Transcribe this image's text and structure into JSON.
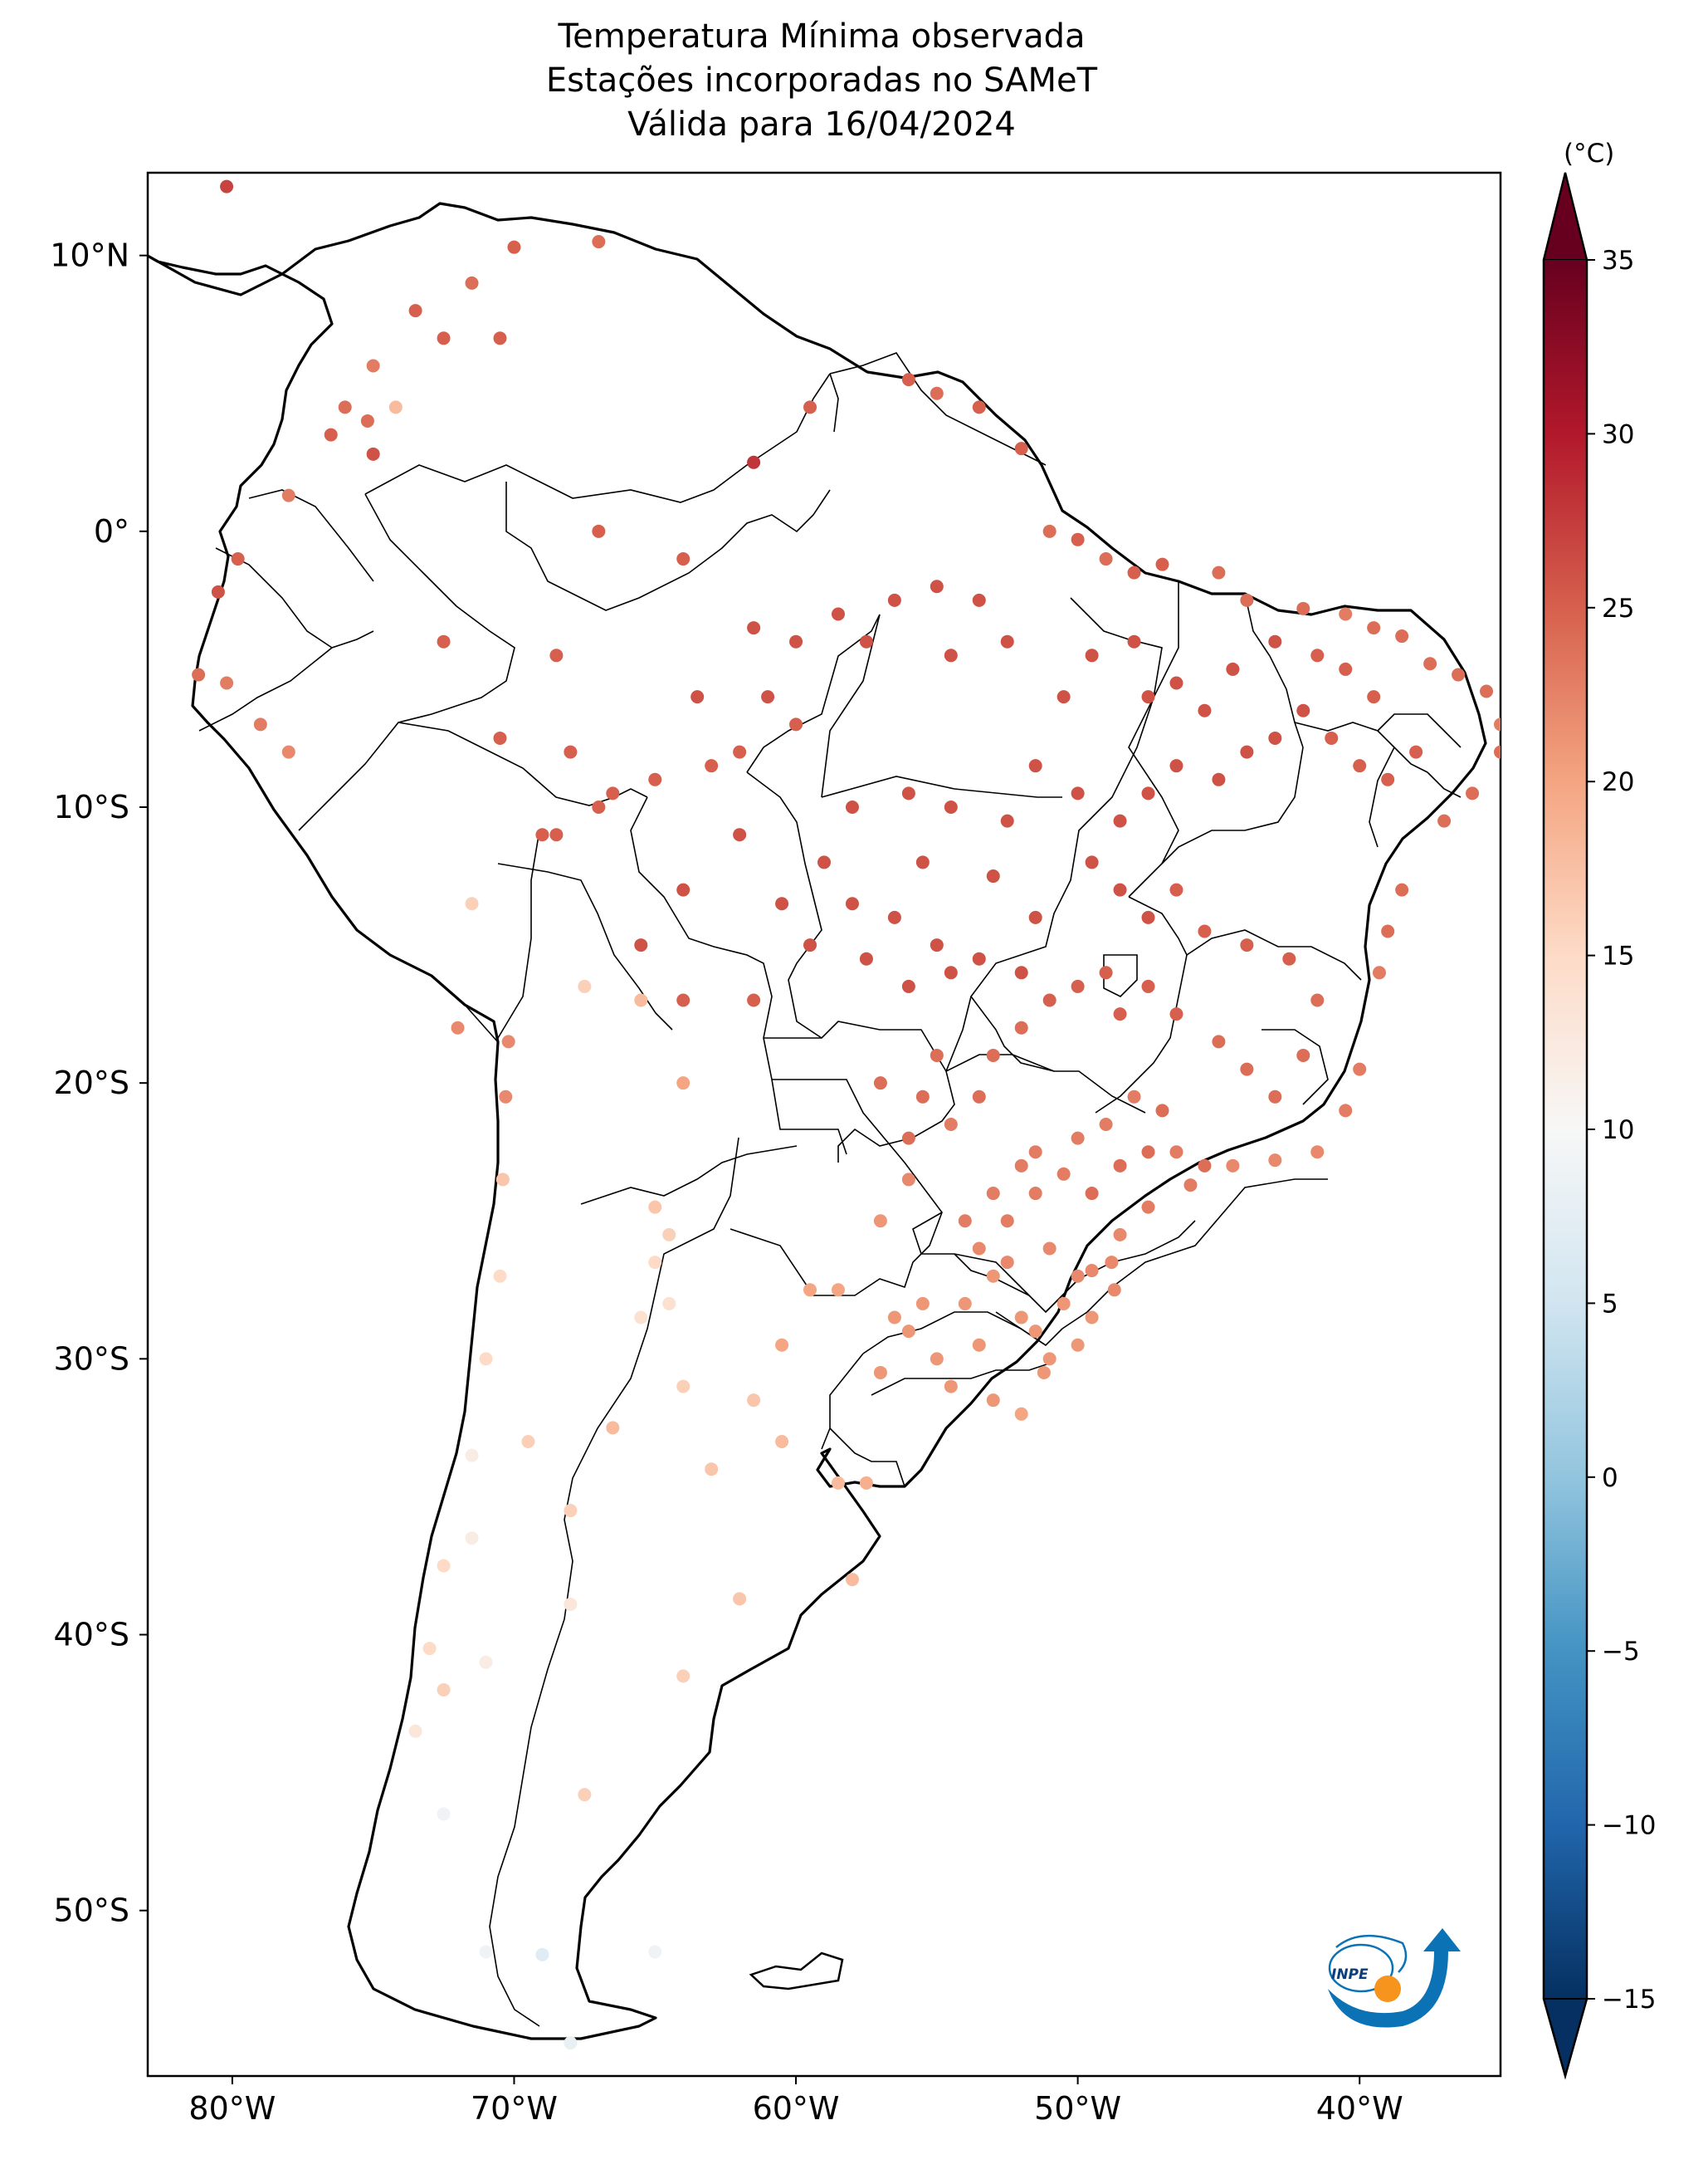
{
  "title": {
    "line1": "Temperatura Mínima observada",
    "line2": "Estações incorporadas no SAMeT",
    "line3": "Válida para 16/04/2024"
  },
  "map": {
    "lon_range": [
      -83,
      -35
    ],
    "lat_range": [
      -56,
      13
    ],
    "lon_ticks": [
      {
        "value": -80,
        "label": "80°W"
      },
      {
        "value": -70,
        "label": "70°W"
      },
      {
        "value": -60,
        "label": "60°W"
      },
      {
        "value": -50,
        "label": "50°W"
      },
      {
        "value": -40,
        "label": "40°W"
      }
    ],
    "lat_ticks": [
      {
        "value": 10,
        "label": "10°N"
      },
      {
        "value": 0,
        "label": "0°"
      },
      {
        "value": -10,
        "label": "10°S"
      },
      {
        "value": -20,
        "label": "20°S"
      },
      {
        "value": -30,
        "label": "30°S"
      },
      {
        "value": -40,
        "label": "40°S"
      },
      {
        "value": -50,
        "label": "50°S"
      }
    ]
  },
  "colorbar": {
    "unit": "(°C)",
    "min": -15,
    "max": 35,
    "cmap": "RdBu_r",
    "extend": "both",
    "ticks": [
      {
        "value": 35,
        "label": "35"
      },
      {
        "value": 30,
        "label": "30"
      },
      {
        "value": 25,
        "label": "25"
      },
      {
        "value": 20,
        "label": "20"
      },
      {
        "value": 15,
        "label": "15"
      },
      {
        "value": 10,
        "label": "10"
      },
      {
        "value": 5,
        "label": "5"
      },
      {
        "value": 0,
        "label": "0"
      },
      {
        "value": -5,
        "label": "−5"
      },
      {
        "value": -10,
        "label": "−10"
      },
      {
        "value": -15,
        "label": "−15"
      }
    ]
  },
  "logo": {
    "text": "INPE"
  },
  "stations": [
    [
      -80.2,
      12.5,
      27
    ],
    [
      -70.0,
      10.3,
      25
    ],
    [
      -67.0,
      10.5,
      24
    ],
    [
      -71.5,
      9.0,
      24
    ],
    [
      -73.5,
      8.0,
      25
    ],
    [
      -72.5,
      7.0,
      25
    ],
    [
      -70.5,
      7.0,
      25
    ],
    [
      -75.0,
      6.0,
      23
    ],
    [
      -76.0,
      4.5,
      24
    ],
    [
      -75.2,
      4.0,
      24
    ],
    [
      -74.2,
      4.5,
      18
    ],
    [
      -76.5,
      3.5,
      25
    ],
    [
      -75.0,
      2.8,
      26
    ],
    [
      -78.0,
      1.3,
      23
    ],
    [
      -79.8,
      -1.0,
      25
    ],
    [
      -80.5,
      -2.2,
      26
    ],
    [
      -81.2,
      -5.2,
      24
    ],
    [
      -80.2,
      -5.5,
      23
    ],
    [
      -79.0,
      -7.0,
      23
    ],
    [
      -78.0,
      -8.0,
      22
    ],
    [
      -72.5,
      -4.0,
      25
    ],
    [
      -68.5,
      -4.5,
      25
    ],
    [
      -70.5,
      -7.5,
      25
    ],
    [
      -68.0,
      -8.0,
      25
    ],
    [
      -66.5,
      -9.5,
      25
    ],
    [
      -67.0,
      -10.0,
      25
    ],
    [
      -68.5,
      -11.0,
      25
    ],
    [
      -69.0,
      -11.0,
      25
    ],
    [
      -63.0,
      -8.5,
      25
    ],
    [
      -62.0,
      -8.0,
      25
    ],
    [
      -60.0,
      -7.0,
      25
    ],
    [
      -65.0,
      -9.0,
      25
    ],
    [
      -67.0,
      0.0,
      25
    ],
    [
      -64.0,
      -1.0,
      25
    ],
    [
      -61.5,
      2.5,
      28
    ],
    [
      -59.5,
      4.5,
      25
    ],
    [
      -56.0,
      5.5,
      25
    ],
    [
      -55.0,
      5.0,
      24
    ],
    [
      -53.5,
      4.5,
      25
    ],
    [
      -52.0,
      3.0,
      25
    ],
    [
      -51.0,
      0.0,
      24
    ],
    [
      -50.0,
      -0.3,
      25
    ],
    [
      -48.0,
      -1.5,
      25
    ],
    [
      -49.0,
      -1.0,
      24
    ],
    [
      -47.0,
      -1.2,
      25
    ],
    [
      -45.0,
      -1.5,
      24
    ],
    [
      -44.0,
      -2.5,
      24
    ],
    [
      -42.0,
      -2.8,
      24
    ],
    [
      -40.5,
      -3.0,
      23
    ],
    [
      -39.5,
      -3.5,
      24
    ],
    [
      -38.5,
      -3.8,
      24
    ],
    [
      -37.5,
      -4.8,
      24
    ],
    [
      -36.5,
      -5.2,
      24
    ],
    [
      -35.5,
      -5.8,
      24
    ],
    [
      -35.0,
      -7.0,
      23
    ],
    [
      -35.0,
      -8.0,
      24
    ],
    [
      -36.0,
      -9.5,
      24
    ],
    [
      -37.0,
      -10.5,
      24
    ],
    [
      -38.5,
      -13.0,
      24
    ],
    [
      -39.0,
      -14.5,
      24
    ],
    [
      -39.3,
      -16.0,
      23
    ],
    [
      -40.0,
      -19.5,
      23
    ],
    [
      -40.5,
      -21.0,
      23
    ],
    [
      -41.5,
      -22.5,
      22
    ],
    [
      -43.0,
      -22.8,
      22
    ],
    [
      -44.5,
      -23.0,
      22
    ],
    [
      -46.0,
      -23.7,
      23
    ],
    [
      -47.5,
      -24.5,
      23
    ],
    [
      -48.5,
      -25.5,
      22
    ],
    [
      -48.8,
      -26.5,
      22
    ],
    [
      -48.7,
      -27.5,
      22
    ],
    [
      -49.5,
      -28.5,
      21
    ],
    [
      -51.0,
      -30.0,
      21
    ],
    [
      -52.0,
      -32.0,
      20
    ],
    [
      -55.0,
      -30.0,
      21
    ],
    [
      -57.0,
      -30.5,
      21
    ],
    [
      -56.0,
      -29.0,
      21
    ],
    [
      -54.0,
      -28.0,
      21
    ],
    [
      -53.0,
      -27.0,
      21
    ],
    [
      -52.0,
      -28.5,
      21
    ],
    [
      -50.5,
      -28.0,
      21
    ],
    [
      -50.0,
      -29.5,
      21
    ],
    [
      -51.5,
      -29.0,
      21
    ],
    [
      -53.5,
      -29.5,
      21
    ],
    [
      -54.5,
      -31.0,
      21
    ],
    [
      -53.0,
      -31.5,
      21
    ],
    [
      -51.2,
      -30.5,
      21
    ],
    [
      -55.5,
      -28.0,
      21
    ],
    [
      -56.5,
      -28.5,
      21
    ],
    [
      -52.5,
      -26.5,
      22
    ],
    [
      -51.0,
      -26.0,
      22
    ],
    [
      -50.0,
      -27.0,
      22
    ],
    [
      -49.5,
      -26.8,
      22
    ],
    [
      -53.5,
      -26.0,
      22
    ],
    [
      -52.5,
      -25.0,
      23
    ],
    [
      -51.5,
      -24.0,
      23
    ],
    [
      -50.5,
      -23.3,
      23
    ],
    [
      -53.0,
      -24.0,
      23
    ],
    [
      -54.0,
      -25.0,
      23
    ],
    [
      -52.0,
      -23.0,
      23
    ],
    [
      -51.5,
      -22.5,
      23
    ],
    [
      -50.0,
      -22.0,
      23
    ],
    [
      -49.0,
      -21.5,
      23
    ],
    [
      -48.0,
      -20.5,
      23
    ],
    [
      -47.0,
      -21.0,
      24
    ],
    [
      -46.5,
      -22.5,
      23
    ],
    [
      -47.5,
      -22.5,
      24
    ],
    [
      -48.5,
      -23.0,
      24
    ],
    [
      -49.5,
      -24.0,
      24
    ],
    [
      -45.5,
      -23.0,
      24
    ],
    [
      -54.5,
      -21.5,
      23
    ],
    [
      -55.5,
      -20.5,
      24
    ],
    [
      -56.0,
      -22.0,
      24
    ],
    [
      -57.0,
      -20.0,
      24
    ],
    [
      -55.0,
      -19.0,
      24
    ],
    [
      -53.5,
      -20.5,
      24
    ],
    [
      -53.0,
      -19.0,
      24
    ],
    [
      -52.0,
      -18.0,
      24
    ],
    [
      -51.0,
      -17.0,
      25
    ],
    [
      -50.0,
      -16.5,
      25
    ],
    [
      -49.0,
      -16.0,
      25
    ],
    [
      -48.5,
      -17.5,
      25
    ],
    [
      -47.5,
      -16.5,
      25
    ],
    [
      -46.5,
      -17.5,
      25
    ],
    [
      -45.0,
      -18.5,
      24
    ],
    [
      -44.0,
      -19.5,
      24
    ],
    [
      -43.0,
      -20.5,
      24
    ],
    [
      -42.0,
      -19.0,
      24
    ],
    [
      -41.5,
      -17.0,
      24
    ],
    [
      -42.5,
      -15.5,
      25
    ],
    [
      -44.0,
      -15.0,
      25
    ],
    [
      -45.5,
      -14.5,
      25
    ],
    [
      -46.5,
      -13.0,
      25
    ],
    [
      -47.5,
      -14.0,
      26
    ],
    [
      -48.5,
      -13.0,
      26
    ],
    [
      -49.5,
      -12.0,
      26
    ],
    [
      -48.5,
      -10.5,
      26
    ],
    [
      -47.5,
      -9.5,
      26
    ],
    [
      -46.5,
      -8.5,
      26
    ],
    [
      -45.0,
      -9.0,
      26
    ],
    [
      -44.0,
      -8.0,
      26
    ],
    [
      -43.0,
      -7.5,
      26
    ],
    [
      -42.0,
      -6.5,
      26
    ],
    [
      -41.0,
      -7.5,
      25
    ],
    [
      -40.0,
      -8.5,
      25
    ],
    [
      -39.0,
      -9.0,
      25
    ],
    [
      -38.0,
      -8.0,
      25
    ],
    [
      -39.5,
      -6.0,
      25
    ],
    [
      -40.5,
      -5.0,
      25
    ],
    [
      -41.5,
      -4.5,
      25
    ],
    [
      -43.0,
      -4.0,
      26
    ],
    [
      -44.5,
      -5.0,
      26
    ],
    [
      -45.5,
      -6.5,
      26
    ],
    [
      -46.5,
      -5.5,
      26
    ],
    [
      -47.5,
      -6.0,
      26
    ],
    [
      -48.0,
      -4.0,
      26
    ],
    [
      -49.5,
      -4.5,
      26
    ],
    [
      -50.5,
      -6.0,
      26
    ],
    [
      -51.5,
      -8.5,
      26
    ],
    [
      -50.0,
      -9.5,
      26
    ],
    [
      -52.5,
      -10.5,
      26
    ],
    [
      -54.5,
      -10.0,
      26
    ],
    [
      -56.0,
      -9.5,
      26
    ],
    [
      -58.0,
      -10.0,
      26
    ],
    [
      -59.0,
      -12.0,
      26
    ],
    [
      -60.5,
      -13.5,
      26
    ],
    [
      -58.0,
      -13.5,
      26
    ],
    [
      -56.5,
      -14.0,
      26
    ],
    [
      -55.0,
      -15.0,
      26
    ],
    [
      -53.5,
      -15.5,
      26
    ],
    [
      -55.5,
      -12.0,
      26
    ],
    [
      -53.0,
      -12.5,
      26
    ],
    [
      -51.5,
      -14.0,
      26
    ],
    [
      -52.0,
      -16.0,
      26
    ],
    [
      -54.5,
      -16.0,
      26
    ],
    [
      -56.0,
      -16.5,
      26
    ],
    [
      -57.5,
      -15.5,
      26
    ],
    [
      -59.5,
      -15.0,
      26
    ],
    [
      -60.0,
      -4.0,
      26
    ],
    [
      -58.5,
      -3.0,
      26
    ],
    [
      -56.5,
      -2.5,
      26
    ],
    [
      -55.0,
      -2.0,
      26
    ],
    [
      -53.5,
      -2.5,
      26
    ],
    [
      -52.5,
      -4.0,
      26
    ],
    [
      -54.5,
      -4.5,
      26
    ],
    [
      -57.5,
      -4.0,
      26
    ],
    [
      -61.5,
      -3.5,
      26
    ],
    [
      -61.0,
      -6.0,
      26
    ],
    [
      -63.5,
      -6.0,
      26
    ],
    [
      -62.0,
      -11.0,
      26
    ],
    [
      -64.0,
      -13.0,
      26
    ],
    [
      -65.5,
      -15.0,
      26
    ],
    [
      -64.0,
      -17.0,
      25
    ],
    [
      -61.5,
      -17.0,
      25
    ],
    [
      -64.0,
      -20.0,
      20
    ],
    [
      -65.5,
      -17.0,
      18
    ],
    [
      -67.5,
      -16.5,
      16
    ],
    [
      -71.5,
      -13.5,
      16
    ],
    [
      -72.0,
      -18.0,
      22
    ],
    [
      -70.2,
      -18.5,
      22
    ],
    [
      -70.3,
      -20.5,
      22
    ],
    [
      -70.4,
      -23.5,
      17
    ],
    [
      -70.5,
      -27.0,
      15
    ],
    [
      -71.0,
      -30.0,
      15
    ],
    [
      -71.5,
      -33.5,
      12
    ],
    [
      -71.5,
      -36.5,
      12
    ],
    [
      -72.5,
      -37.5,
      15
    ],
    [
      -73.0,
      -40.5,
      15
    ],
    [
      -72.5,
      -42.0,
      16
    ],
    [
      -73.5,
      -43.5,
      13
    ],
    [
      -72.5,
      -46.5,
      9
    ],
    [
      -71.0,
      -51.5,
      9
    ],
    [
      -65.0,
      -24.5,
      17
    ],
    [
      -64.5,
      -25.5,
      16
    ],
    [
      -65.0,
      -26.5,
      15
    ],
    [
      -64.5,
      -28.0,
      14
    ],
    [
      -65.5,
      -28.5,
      14
    ],
    [
      -64.0,
      -31.0,
      16
    ],
    [
      -61.5,
      -31.5,
      17
    ],
    [
      -60.5,
      -33.0,
      18
    ],
    [
      -63.0,
      -34.0,
      17
    ],
    [
      -58.5,
      -34.5,
      18
    ],
    [
      -57.5,
      -34.5,
      19
    ],
    [
      -58.0,
      -38.0,
      18
    ],
    [
      -62.0,
      -38.7,
      17
    ],
    [
      -64.0,
      -41.5,
      16
    ],
    [
      -68.0,
      -38.9,
      13
    ],
    [
      -68.0,
      -35.5,
      16
    ],
    [
      -69.5,
      -33.0,
      16
    ],
    [
      -66.5,
      -32.5,
      18
    ],
    [
      -71.0,
      -41.0,
      12
    ],
    [
      -67.5,
      -45.8,
      16
    ],
    [
      -69.0,
      -51.6,
      7
    ],
    [
      -65.0,
      -51.5,
      9
    ],
    [
      -68.0,
      -54.8,
      8
    ],
    [
      -58.5,
      -27.5,
      20
    ],
    [
      -57.0,
      -25.0,
      21
    ],
    [
      -56.0,
      -23.5,
      22
    ],
    [
      -59.5,
      -27.5,
      20
    ],
    [
      -60.5,
      -29.5,
      20
    ]
  ]
}
